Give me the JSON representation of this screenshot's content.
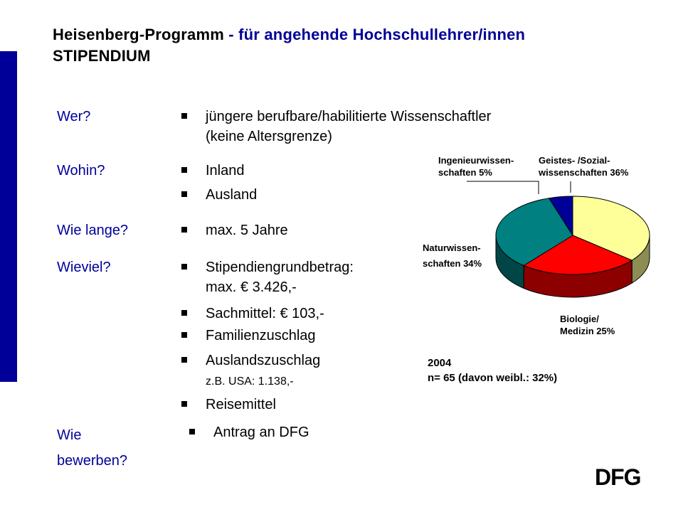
{
  "title": {
    "main": "Heisenberg-Programm",
    "sub": " - für angehende Hochschullehrer/innen",
    "line2": "STIPENDIUM"
  },
  "rows": {
    "wer": {
      "label": "Wer?",
      "item1": "jüngere berufbare/habilitierte Wissenschaftler",
      "item1b": "(keine Altersgrenze)"
    },
    "wohin": {
      "label": "Wohin?",
      "item1": "Inland",
      "item2": "Ausland"
    },
    "wielange": {
      "label": "Wie lange?",
      "item1": "max. 5 Jahre"
    },
    "wieviel": {
      "label": "Wieviel?",
      "item1": "Stipendiengrundbetrag:",
      "item1b": "max. € 3.426,-",
      "item2": "Sachmittel: € 103,-",
      "item3": "Familienzuschlag",
      "item4": "Auslandszuschlag",
      "item4b": "z.B. USA: 1.138,-",
      "item5": "Reisemittel"
    },
    "bewerben": {
      "label_line1": "Wie",
      "label_line2": "bewerben?",
      "item1": "Antrag an DFG"
    }
  },
  "chart_data": {
    "type": "pie",
    "title": "",
    "slices": [
      {
        "label": "Geistes- /Sozial- wissenschaften 36%",
        "value": 36,
        "color": "#ffff99"
      },
      {
        "label": "Biologie/ Medizin 25%",
        "value": 25,
        "color": "#ff0000"
      },
      {
        "label": "Naturwissen- schaften 34%",
        "value": 34,
        "color": "#008080"
      },
      {
        "label": "Ingenieurwissen- schaften 5%",
        "value": 5,
        "color": "#000099"
      }
    ],
    "labels": {
      "geistes_l1": "Geistes- /Sozial-",
      "geistes_l2": "wissenschaften  36%",
      "ingenieur_l1": "Ingenieurwissen-",
      "ingenieur_l2": "schaften 5%",
      "natur_l1": "Naturwissen-",
      "natur_l2": "schaften 34%",
      "bio_l1": "Biologie/",
      "bio_l2": "Medizin 25%"
    },
    "note_year": "2004",
    "note_n": "n= 65 (davon weibl.: 32%)"
  },
  "logo": {
    "text": "DFG"
  },
  "colors": {
    "accent": "#000099"
  }
}
